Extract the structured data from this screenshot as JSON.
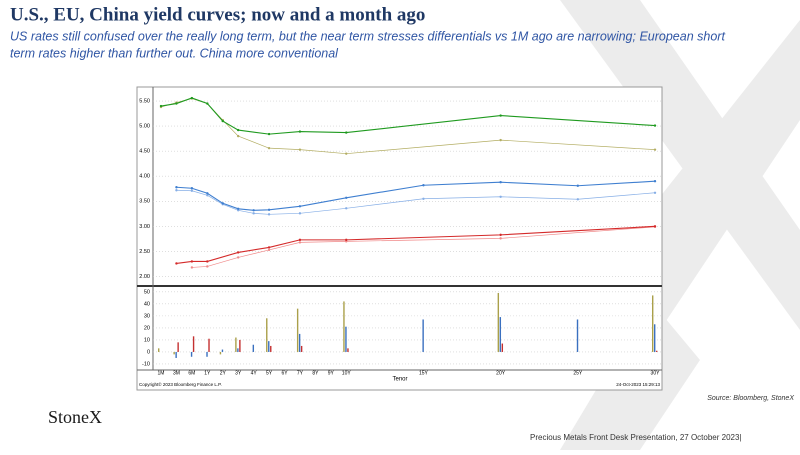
{
  "header": {
    "title": "U.S., EU, China yield curves; now and a month ago",
    "subtitle_lines": [
      "US rates still confused over the really long term, but the near term stresses differentials vs 1M ago are narrowing; European short",
      "term rates higher than further out.  China more conventional"
    ]
  },
  "source": "Source: Bloomberg, StoneX",
  "logo": "StoneX",
  "footer": "Precious Metals Front Desk Presentation, 27 October 2023|",
  "chart_data": [
    {
      "type": "line",
      "ylim": [
        1.85,
        5.7
      ],
      "yticks": [
        {
          "value": 2,
          "label": "2.00"
        },
        {
          "value": 2.5,
          "label": "2.50"
        },
        {
          "value": 3,
          "label": "3.00"
        },
        {
          "value": 3.5,
          "label": "3.50"
        },
        {
          "value": 4,
          "label": "4.00"
        },
        {
          "value": 4.5,
          "label": "4.50"
        },
        {
          "value": 5,
          "label": "5.00"
        },
        {
          "value": 5.5,
          "label": "5.50"
        }
      ],
      "grid": true,
      "series": [
        {
          "color": "#b3ad62",
          "x": [
            "1M",
            "3M",
            "6M",
            "1Y",
            "2Y",
            "3Y",
            "5Y",
            "7Y",
            "10Y",
            "20Y",
            "30Y"
          ],
          "values": [
            5.38,
            5.47,
            5.55,
            5.45,
            5.12,
            4.8,
            4.56,
            4.53,
            4.45,
            4.72,
            4.53
          ]
        },
        {
          "color": "#1f9a1f",
          "x": [
            "1M",
            "3M",
            "6M",
            "1Y",
            "2Y",
            "3Y",
            "5Y",
            "7Y",
            "10Y",
            "20Y",
            "30Y"
          ],
          "values": [
            5.4,
            5.45,
            5.56,
            5.45,
            5.1,
            4.92,
            4.84,
            4.89,
            4.87,
            5.21,
            5.01
          ]
        },
        {
          "color": "#86aee6",
          "x": [
            "3M",
            "6M",
            "1Y",
            "2Y",
            "3Y",
            "4Y",
            "5Y",
            "7Y",
            "10Y",
            "15Y",
            "20Y",
            "25Y",
            "30Y"
          ],
          "values": [
            3.72,
            3.71,
            3.62,
            3.44,
            3.32,
            3.26,
            3.24,
            3.26,
            3.36,
            3.55,
            3.59,
            3.54,
            3.67
          ]
        },
        {
          "color": "#3f7fd0",
          "x": [
            "3M",
            "6M",
            "1Y",
            "2Y",
            "3Y",
            "4Y",
            "5Y",
            "7Y",
            "10Y",
            "15Y",
            "20Y",
            "25Y",
            "30Y"
          ],
          "values": [
            3.78,
            3.76,
            3.66,
            3.46,
            3.35,
            3.32,
            3.33,
            3.4,
            3.57,
            3.82,
            3.88,
            3.81,
            3.9
          ]
        },
        {
          "color": "#f08a8a",
          "x": [
            "6M",
            "1Y",
            "3Y",
            "5Y",
            "7Y",
            "10Y",
            "20Y",
            "30Y"
          ],
          "values": [
            2.18,
            2.2,
            2.38,
            2.53,
            2.68,
            2.7,
            2.76,
            2.99
          ]
        },
        {
          "color": "#d42a2a",
          "x": [
            "3M",
            "6M",
            "1Y",
            "3Y",
            "5Y",
            "7Y",
            "10Y",
            "20Y",
            "30Y"
          ],
          "values": [
            2.26,
            2.3,
            2.3,
            2.48,
            2.58,
            2.73,
            2.73,
            2.83,
            3.0
          ]
        }
      ]
    },
    {
      "type": "bar",
      "x_label": "Tenor",
      "copyright": "Copyright© 2023 Bloomberg Finance L.P.",
      "timestamp": "24-Oct-2023 15:29:13",
      "categories": [
        "1M",
        "3M",
        "6M",
        "1Y",
        "2Y",
        "3Y",
        "4Y",
        "5Y",
        "6Y",
        "7Y",
        "8Y",
        "9Y",
        "10Y",
        "15Y",
        "20Y",
        "25Y",
        "30Y"
      ],
      "ylim": [
        -15,
        54
      ],
      "yticks": [
        -10,
        0,
        10,
        20,
        30,
        40,
        50
      ],
      "grid": true,
      "series": [
        {
          "color": "#aaa04a",
          "x": [
            "1M",
            "3M",
            "6M",
            "1Y",
            "2Y",
            "3Y",
            "5Y",
            "7Y",
            "10Y",
            "20Y",
            "30Y"
          ],
          "values": [
            3,
            -2,
            0,
            0,
            -2,
            12,
            28,
            36,
            42,
            49,
            47
          ]
        },
        {
          "color": "#3a70c0",
          "x": [
            "3M",
            "6M",
            "1Y",
            "2Y",
            "3Y",
            "4Y",
            "5Y",
            "7Y",
            "10Y",
            "15Y",
            "20Y",
            "25Y",
            "30Y"
          ],
          "values": [
            -5,
            -4,
            -4,
            2,
            3,
            6,
            9,
            15,
            21,
            27,
            29,
            27,
            23
          ]
        },
        {
          "color": "#c43030",
          "x": [
            "3M",
            "6M",
            "1Y",
            "3Y",
            "5Y",
            "7Y",
            "10Y",
            "20Y",
            "30Y"
          ],
          "values": [
            8,
            13,
            11,
            10,
            5,
            5,
            3,
            7,
            1
          ]
        }
      ]
    }
  ]
}
